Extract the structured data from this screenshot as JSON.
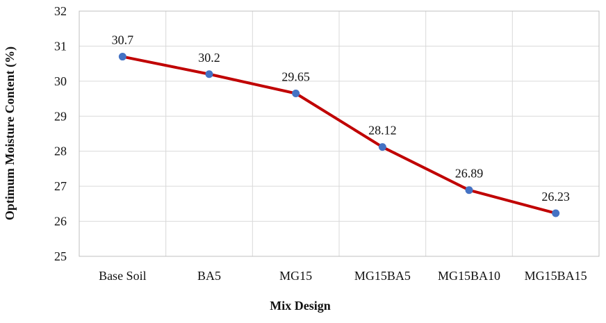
{
  "chart_data": {
    "type": "line",
    "title": "",
    "xlabel": "Mix Design",
    "ylabel": "Optimum  Moisture Content  (%)",
    "categories": [
      "Base Soil",
      "BA5",
      "MG15",
      "MG15BA5",
      "MG15BA10",
      "MG15BA15"
    ],
    "series": [
      {
        "values": [
          30.7,
          30.2,
          29.65,
          28.12,
          26.89,
          26.23
        ]
      }
    ],
    "data_labels": [
      "30.7",
      "30.2",
      "29.65",
      "28.12",
      "26.89",
      "26.23"
    ],
    "ylim": [
      25,
      32
    ],
    "y_ticks": [
      "25",
      "26",
      "27",
      "28",
      "29",
      "30",
      "31",
      "32"
    ],
    "grid": true,
    "legend": "none",
    "colors": {
      "line": "#C00000",
      "marker": "#4472C4",
      "grid": "#D9D9D9",
      "frame": "#BFBFBF"
    }
  }
}
